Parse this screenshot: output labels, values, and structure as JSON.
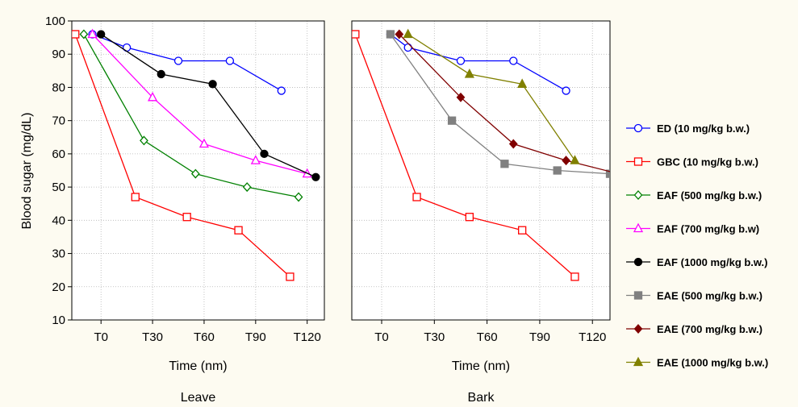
{
  "chart_data": {
    "type": "line",
    "ylabel": "Blood sugar (mg/dL)",
    "xlabel": "Time (nm)",
    "ylim": [
      10,
      100
    ],
    "y_ticks": [
      10,
      20,
      30,
      40,
      50,
      60,
      70,
      80,
      90,
      100
    ],
    "x_ticks": [
      "T0",
      "T30",
      "T60",
      "T90",
      "T120"
    ],
    "x_tick_positions": [
      0,
      30,
      60,
      90,
      120
    ],
    "xlim": [
      -17,
      130
    ],
    "grid": true,
    "legend_position": "right",
    "panels": [
      {
        "name": "Leave",
        "series": [
          {
            "name": "ED (10 mg/kg b.w.)",
            "color": "#0000ff",
            "marker": "circle-open",
            "x": [
              -5,
              15,
              45,
              75,
              105
            ],
            "y": [
              96,
              92,
              88,
              88,
              79
            ]
          },
          {
            "name": "GBC (10 mg/kg b.w.)",
            "color": "#ff0000",
            "marker": "square-open",
            "x": [
              -15,
              20,
              50,
              80,
              110
            ],
            "y": [
              96,
              47,
              41,
              37,
              23
            ]
          },
          {
            "name": "EAF (500 mg/kg b.w.)",
            "color": "#008000",
            "marker": "diamond-open",
            "x": [
              -10,
              25,
              55,
              85,
              115
            ],
            "y": [
              96,
              64,
              54,
              50,
              47
            ]
          },
          {
            "name": "EAF (700 mg/kg b.w)",
            "color": "#ff00ff",
            "marker": "triangle-open",
            "x": [
              -5,
              30,
              60,
              90,
              120
            ],
            "y": [
              96,
              77,
              63,
              58,
              54
            ]
          },
          {
            "name": "EAF (1000 mg/kg b.w.)",
            "color": "#000000",
            "marker": "circle-filled",
            "x": [
              0,
              35,
              65,
              95,
              125
            ],
            "y": [
              96,
              84,
              81,
              60,
              53
            ]
          }
        ]
      },
      {
        "name": "Bark",
        "series": [
          {
            "name": "ED (10 mg/kg b.w.)",
            "color": "#0000ff",
            "marker": "circle-open",
            "x": [
              5,
              15,
              45,
              75,
              105
            ],
            "y": [
              96,
              92,
              88,
              88,
              79
            ]
          },
          {
            "name": "GBC (10 mg/kg b.w.)",
            "color": "#ff0000",
            "marker": "square-open",
            "x": [
              -15,
              20,
              50,
              80,
              110
            ],
            "y": [
              96,
              47,
              41,
              37,
              23
            ]
          },
          {
            "name": "EAE (500 mg/kg b.w.)",
            "color": "#808080",
            "marker": "square-filled",
            "x": [
              5,
              40,
              70,
              100,
              130
            ],
            "y": [
              96,
              70,
              57,
              55,
              54
            ]
          },
          {
            "name": "EAE (700 mg/kg b.w.)",
            "color": "#800000",
            "marker": "diamond-filled",
            "x": [
              10,
              45,
              75,
              105,
              135
            ],
            "y": [
              96,
              77,
              63,
              58,
              54
            ]
          },
          {
            "name": "EAE (1000 mg/kg b.w.)",
            "color": "#808000",
            "marker": "triangle-filled",
            "x": [
              15,
              50,
              80,
              110
            ],
            "y": [
              96,
              84,
              81,
              58
            ]
          }
        ]
      }
    ],
    "legend": [
      {
        "label": "ED (10 mg/kg b.w.)",
        "color": "#0000ff",
        "marker": "circle-open"
      },
      {
        "label": "GBC (10 mg/kg b.w.)",
        "color": "#ff0000",
        "marker": "square-open"
      },
      {
        "label": "EAF (500 mg/kg b.w.)",
        "color": "#008000",
        "marker": "diamond-open"
      },
      {
        "label": "EAF (700 mg/kg b.w)",
        "color": "#ff00ff",
        "marker": "triangle-open"
      },
      {
        "label": "EAF (1000 mg/kg b.w.)",
        "color": "#000000",
        "marker": "circle-filled"
      },
      {
        "label": "EAE (500 mg/kg b.w.)",
        "color": "#808080",
        "marker": "square-filled"
      },
      {
        "label": "EAE (700 mg/kg b.w.)",
        "color": "#800000",
        "marker": "diamond-filled"
      },
      {
        "label": "EAE (1000 mg/kg b.w.)",
        "color": "#808000",
        "marker": "triangle-filled"
      }
    ]
  }
}
